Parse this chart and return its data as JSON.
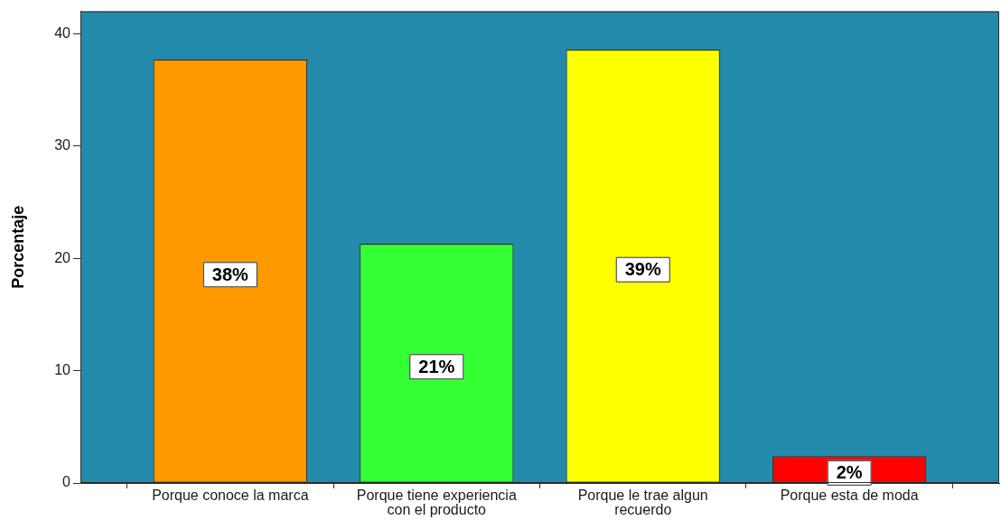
{
  "chart_data": {
    "type": "bar",
    "ylabel": "Porcentaje",
    "categories": [
      "Porque conoce la marca",
      "Porque tiene experiencia con el producto",
      "Porque le trae algun recuerdo",
      "Porque esta de moda"
    ],
    "values": [
      37.7,
      21.3,
      38.6,
      2.4
    ],
    "colors": [
      "#ff9900",
      "#33ff33",
      "#ffff00",
      "#ff0000"
    ],
    "value_labels": [
      "38%",
      "21%",
      "39%",
      "2%"
    ],
    "ylim": [
      0,
      42
    ],
    "yticks": [
      0,
      10,
      20,
      30,
      40
    ]
  }
}
